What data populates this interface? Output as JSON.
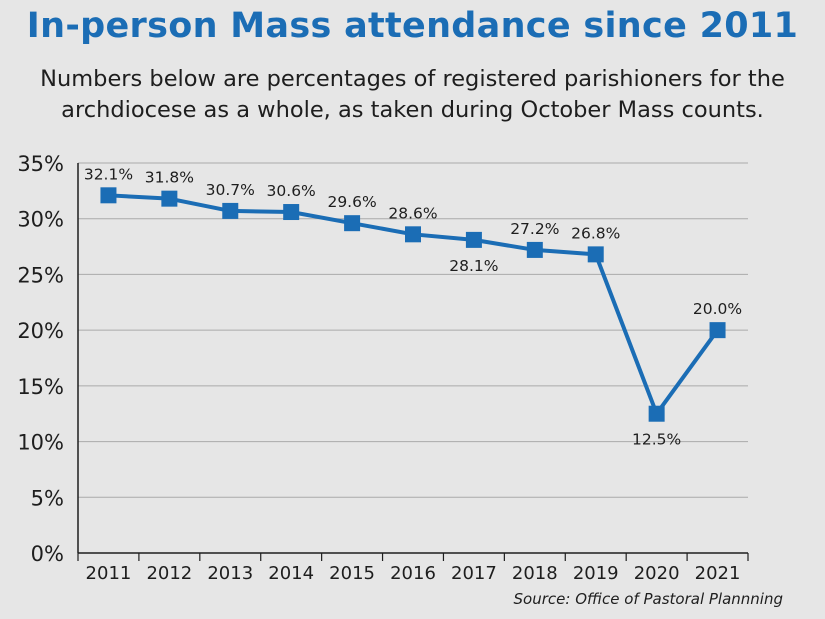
{
  "title": "In-person Mass attendance since 2011",
  "subtitle": "Numbers below are percentages of registered parishioners for the archdiocese as a whole, as taken during October Mass counts.",
  "source": "Source: Office of Pastoral Plannning",
  "colors": {
    "accent": "#1b6db5",
    "line": "#1b6db5",
    "background": "#e6e6e6",
    "grid": "#aaaaaa"
  },
  "chart_data": {
    "type": "line",
    "title": "In-person Mass attendance since 2011",
    "xlabel": "",
    "ylabel": "",
    "categories": [
      "2011",
      "2012",
      "2013",
      "2014",
      "2015",
      "2016",
      "2017",
      "2018",
      "2019",
      "2020",
      "2021"
    ],
    "values": [
      32.1,
      31.8,
      30.7,
      30.6,
      29.6,
      28.6,
      28.1,
      27.2,
      26.8,
      12.5,
      20.0
    ],
    "data_labels": [
      "32.1%",
      "31.8%",
      "30.7%",
      "30.6%",
      "29.6%",
      "28.6%",
      "28.1%",
      "27.2%",
      "26.8%",
      "12.5%",
      "20.0%"
    ],
    "label_position": [
      "above",
      "above",
      "above",
      "above",
      "above",
      "above",
      "below",
      "above",
      "above",
      "below",
      "above"
    ],
    "yticks": [
      0,
      5,
      10,
      15,
      20,
      25,
      30,
      35
    ],
    "ytick_labels": [
      "0%",
      "5%",
      "10%",
      "15%",
      "20%",
      "25%",
      "30%",
      "35%"
    ],
    "ylim": [
      0,
      35
    ],
    "grid": true,
    "marker": "square"
  }
}
